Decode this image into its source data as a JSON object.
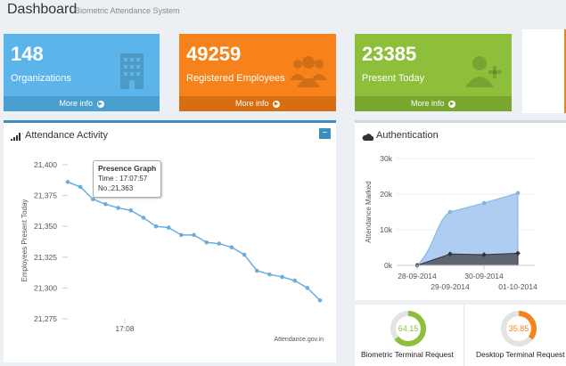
{
  "header": {
    "title": "Dashboard",
    "subtitle": "Biometric Attendance System"
  },
  "tiles": [
    {
      "value": "148",
      "label": "Organizations",
      "more": "More info",
      "icon": "building-icon",
      "color": "#5bb5ea"
    },
    {
      "value": "49259",
      "label": "Registered Employees",
      "more": "More info",
      "icon": "users-icon",
      "color": "#f7821b"
    },
    {
      "value": "23385",
      "label": "Present Today",
      "more": "More info",
      "icon": "user-add-icon",
      "color": "#8dbf3b"
    }
  ],
  "attendance": {
    "title": "Attendance Activity",
    "tooltip": {
      "title": "Presence Graph",
      "time": "Time : 17:07:57",
      "count": "No.:21,363"
    },
    "chart_data": {
      "type": "line",
      "ylabel": "Employees Present Today",
      "ylim": [
        21275,
        21400
      ],
      "yticks": [
        "21,400",
        "21,375",
        "21,350",
        "21,325",
        "21,300",
        "21,275"
      ],
      "xticks": [
        "17:08"
      ],
      "credit": "Attendance.gov.in",
      "series": [
        {
          "values": [
            21386,
            21382,
            21372,
            21368,
            21365,
            21363,
            21357,
            21350,
            21349,
            21343,
            21343,
            21337,
            21336,
            21333,
            21327,
            21314,
            21311,
            21309,
            21306,
            21300,
            21290
          ]
        }
      ]
    }
  },
  "authentication": {
    "title": "Authentication",
    "chart_data": {
      "type": "area",
      "ylabel": "Attendance Marked",
      "yticks": [
        "0k",
        "10k",
        "20k",
        "30k"
      ],
      "ylim": [
        0,
        30000
      ],
      "xticks_top": [
        "28-09-2014",
        "30-09-2014"
      ],
      "xticks_bottom": [
        "29-09-2014",
        "01-10-2014"
      ],
      "series": [
        {
          "values": [
            0,
            15000,
            17500,
            20300
          ],
          "color": "#aecdf0"
        },
        {
          "values": [
            0,
            3200,
            3000,
            3400
          ],
          "color": "#5d6573"
        }
      ]
    }
  },
  "terminals": [
    {
      "value": "64.15",
      "label": "Biometric Terminal Request",
      "percent": 64.15,
      "color": "#8dbf3b"
    },
    {
      "value": "35.85",
      "label": "Desktop Terminal Request",
      "percent": 35.85,
      "color": "#f7821b"
    }
  ]
}
